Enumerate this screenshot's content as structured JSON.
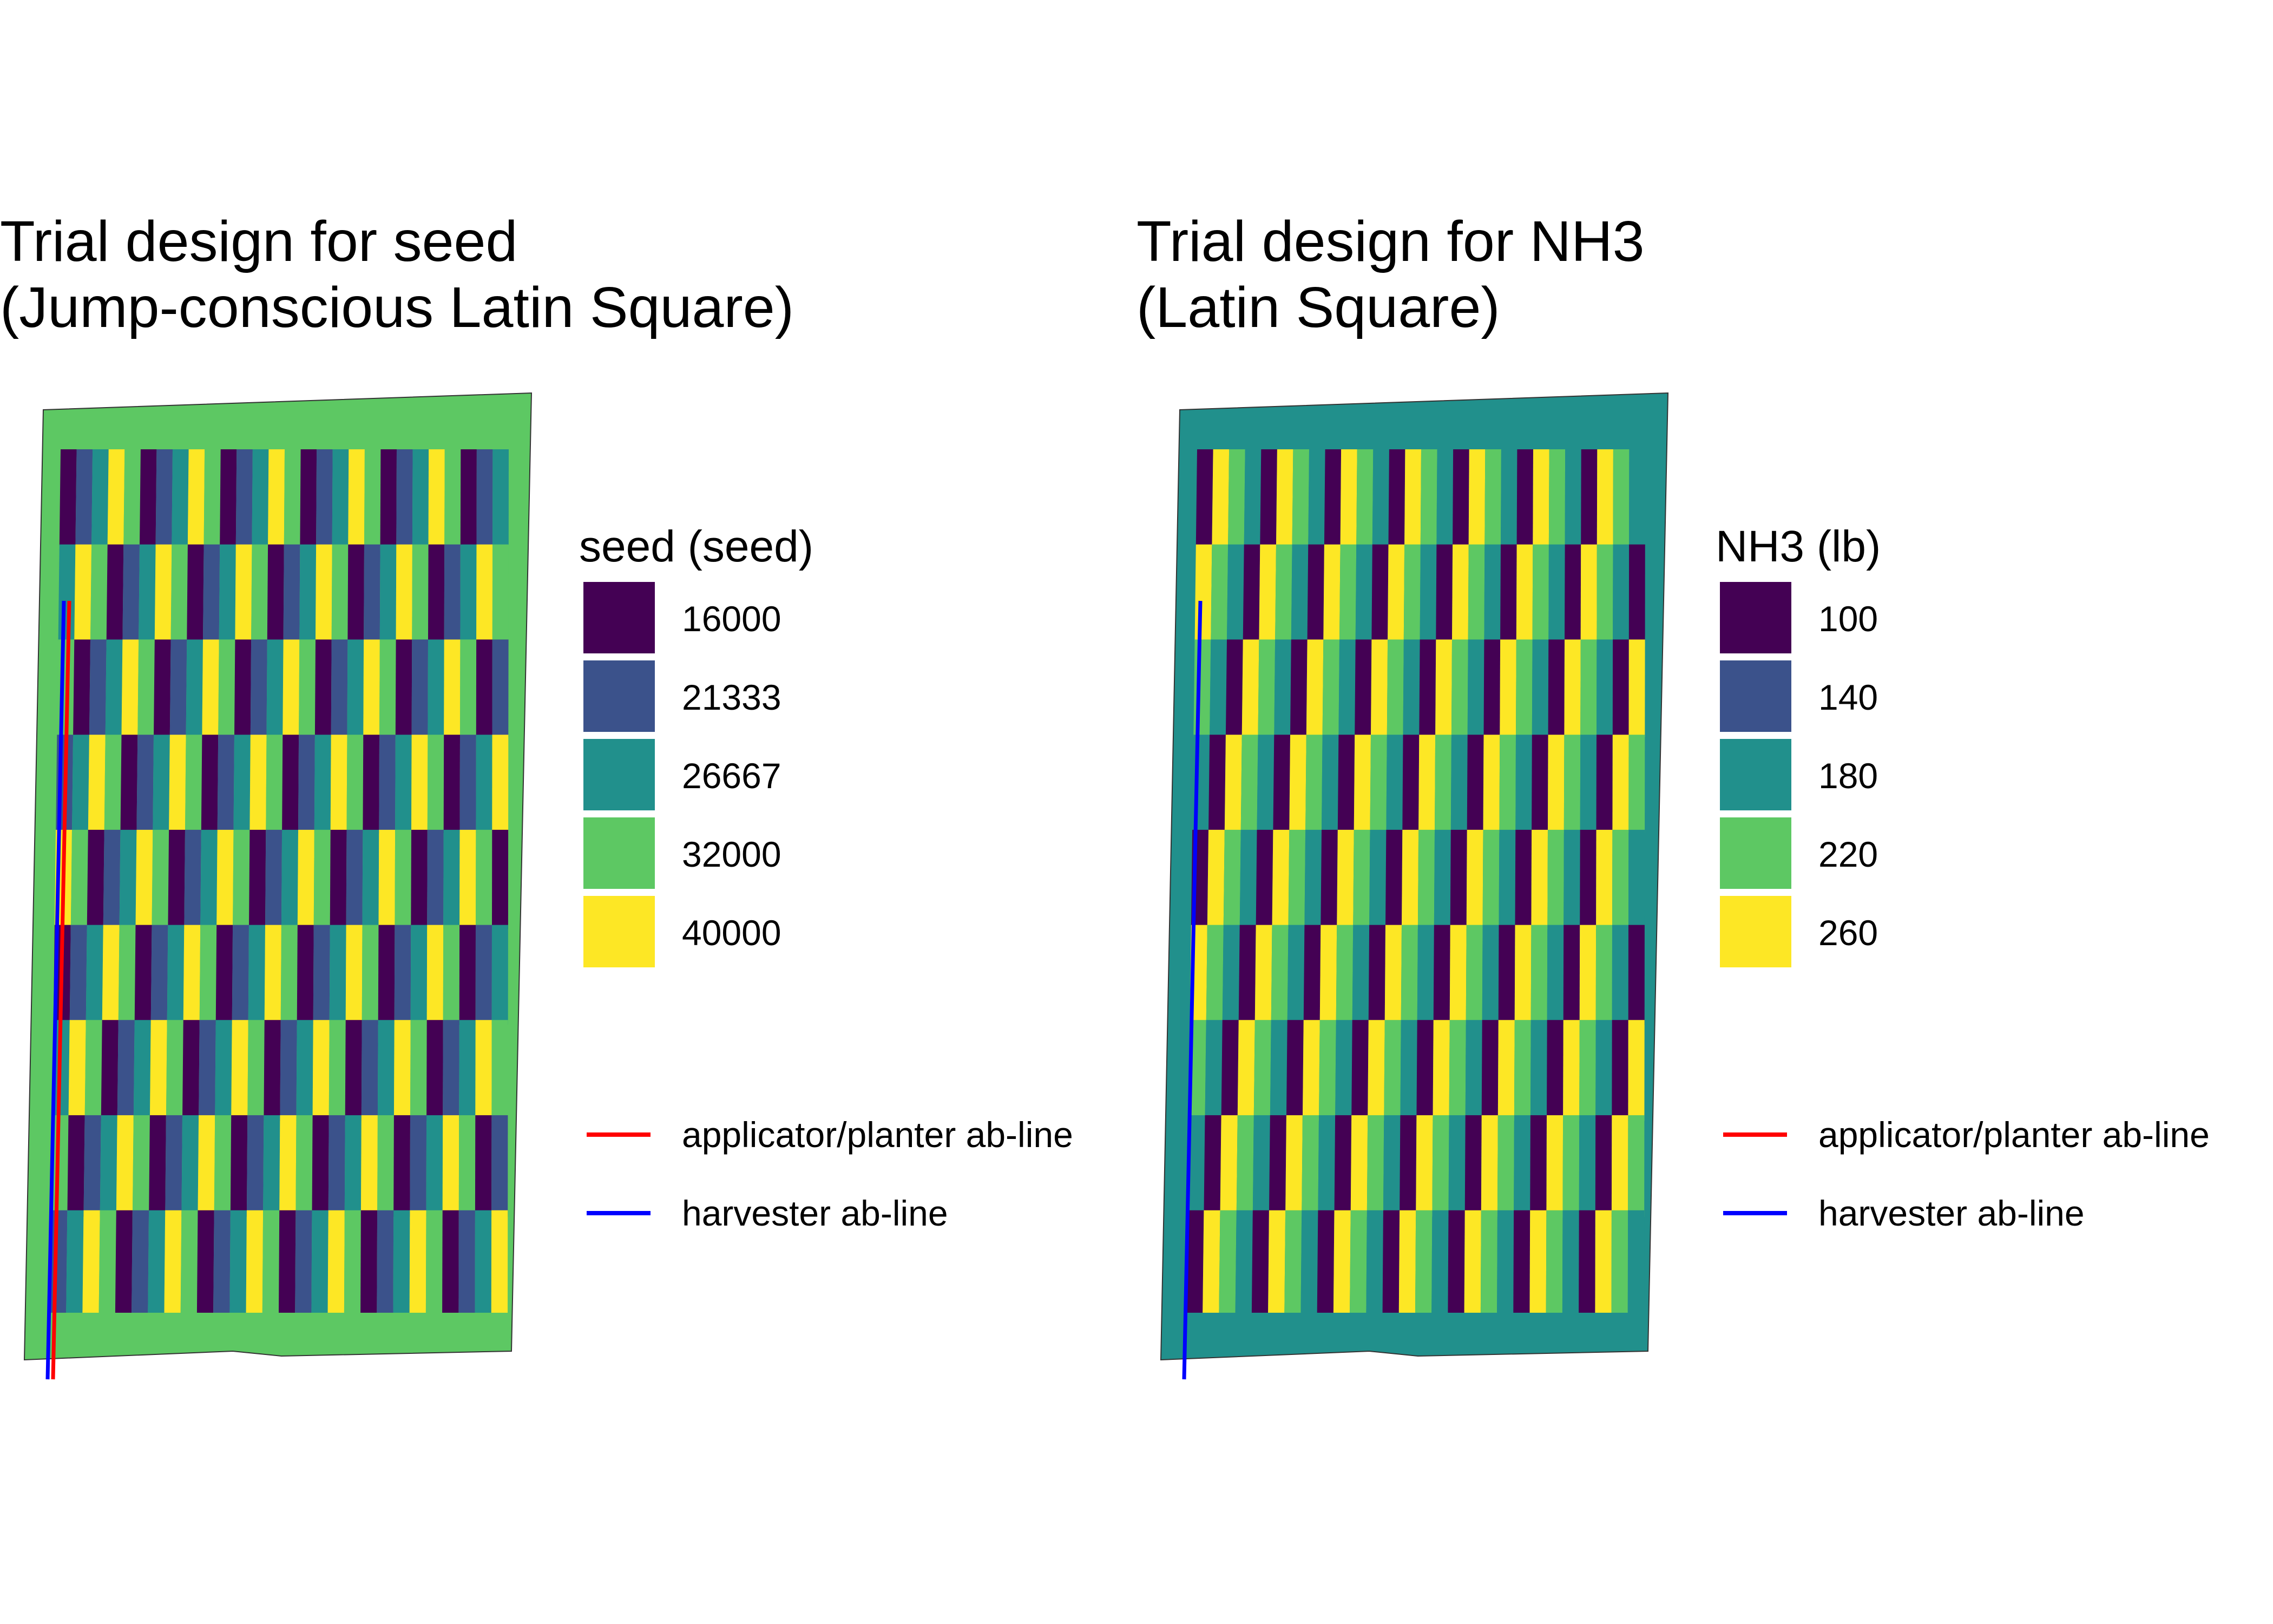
{
  "panels": [
    {
      "title_line1": "Trial design for seed",
      "title_line2": "(Jump-conscious Latin Square)",
      "legend_title": "seed (seed)",
      "levels": [
        {
          "label": "16000",
          "color": "#440154"
        },
        {
          "label": "21333",
          "color": "#3B528B"
        },
        {
          "label": "26667",
          "color": "#21908C"
        },
        {
          "label": "32000",
          "color": "#5DC863"
        },
        {
          "label": "40000",
          "color": "#FDE725"
        }
      ],
      "buffer_color": "#5DC863",
      "design": "jump-conscious",
      "lines": [
        {
          "label": "applicator/planter ab-line",
          "color": "#FF0000"
        },
        {
          "label": "harvester ab-line",
          "color": "#0000FF"
        }
      ]
    },
    {
      "title_line1": "Trial design for NH3",
      "title_line2": "(Latin Square)",
      "legend_title": "NH3 (lb)",
      "levels": [
        {
          "label": "100",
          "color": "#440154"
        },
        {
          "label": "140",
          "color": "#3B528B"
        },
        {
          "label": "180",
          "color": "#21908C"
        },
        {
          "label": "220",
          "color": "#5DC863"
        },
        {
          "label": "260",
          "color": "#FDE725"
        }
      ],
      "buffer_color": "#21908C",
      "design": "latin-square",
      "lines": [
        {
          "label": "applicator/planter ab-line",
          "color": "#FF0000"
        },
        {
          "label": "harvester ab-line",
          "color": "#0000FF"
        }
      ]
    }
  ]
}
